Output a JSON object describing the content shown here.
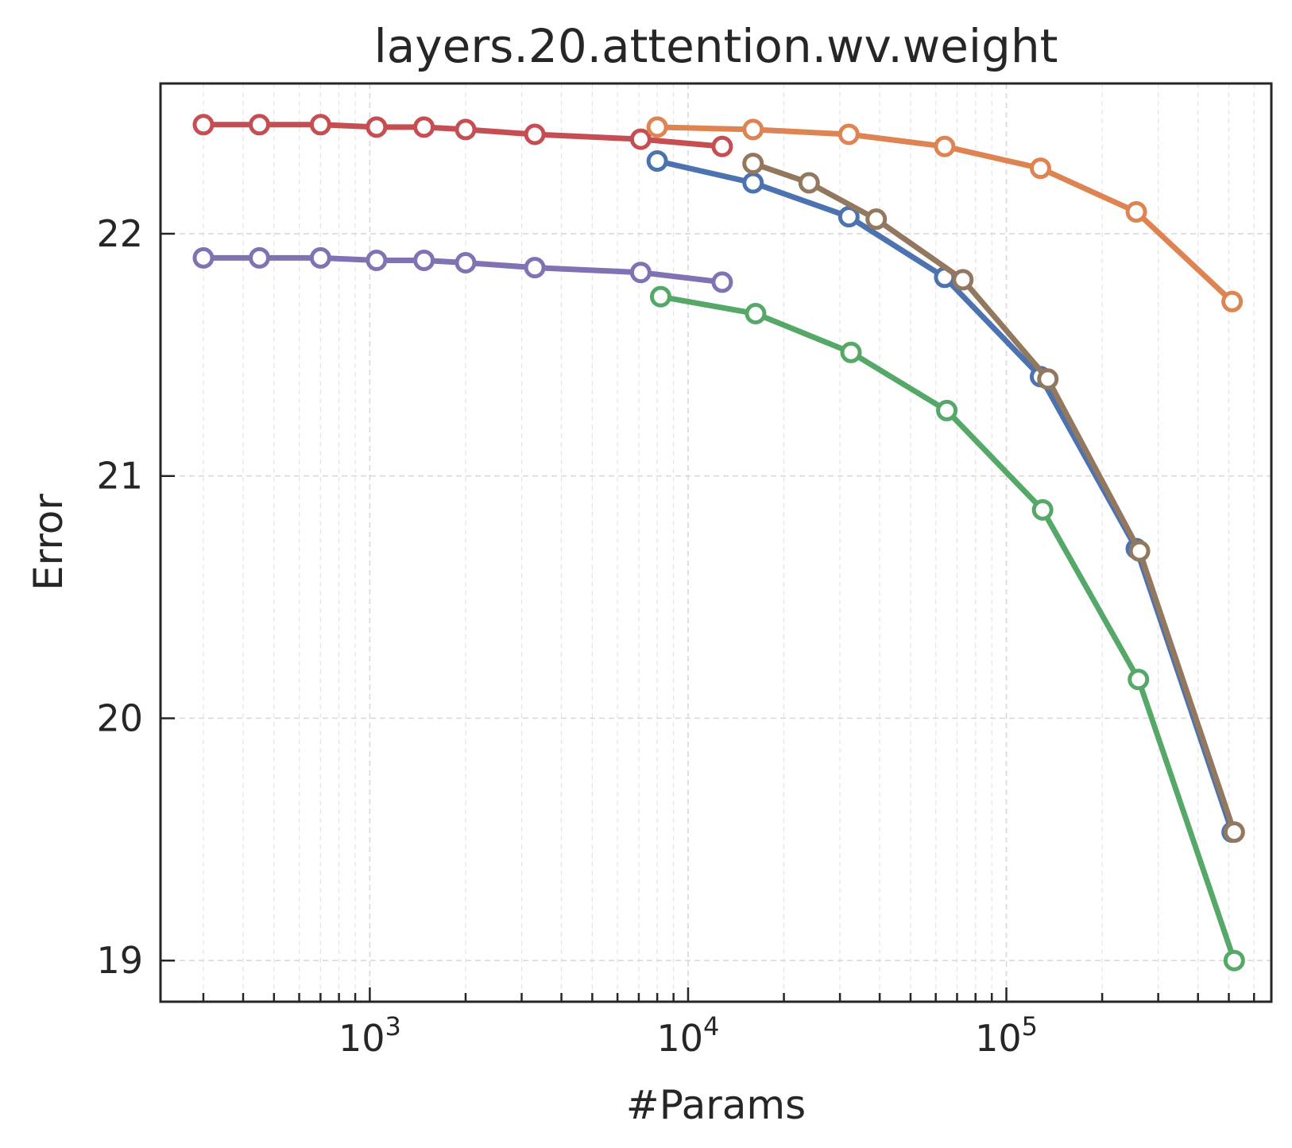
{
  "chart_data": {
    "type": "line",
    "title": "layers.20.attention.wv.weight",
    "xlabel": "#Params",
    "ylabel": "Error",
    "xscale": "log",
    "xlim": [
      220,
      680000
    ],
    "ylim": [
      18.83,
      22.62
    ],
    "yticks": [
      {
        "value": 19,
        "label": "19"
      },
      {
        "value": 20,
        "label": "20"
      },
      {
        "value": 21,
        "label": "21"
      },
      {
        "value": 22,
        "label": "22"
      }
    ],
    "xticks": [
      {
        "value": 1000,
        "base": "10",
        "exp": "3"
      },
      {
        "value": 10000,
        "base": "10",
        "exp": "4"
      },
      {
        "value": 100000,
        "base": "10",
        "exp": "5"
      }
    ],
    "grid": true,
    "series": [
      {
        "name": "red",
        "color": "#c44e52",
        "x": [
          300,
          450,
          700,
          1050,
          1480,
          2000,
          3300,
          7100,
          12800
        ],
        "y": [
          22.45,
          22.45,
          22.45,
          22.44,
          22.44,
          22.43,
          22.41,
          22.39,
          22.36
        ]
      },
      {
        "name": "orange",
        "color": "#dd8452",
        "x": [
          8000,
          16000,
          32000,
          64000,
          128000,
          256000,
          512000
        ],
        "y": [
          22.44,
          22.43,
          22.41,
          22.36,
          22.27,
          22.09,
          21.72
        ]
      },
      {
        "name": "blue",
        "color": "#4c72b0",
        "x": [
          8000,
          16000,
          32000,
          64000,
          128000,
          256000,
          512000
        ],
        "y": [
          22.3,
          22.21,
          22.07,
          21.82,
          21.41,
          20.7,
          19.53
        ]
      },
      {
        "name": "brown",
        "color": "#937860",
        "x": [
          16000,
          24000,
          39000,
          73000,
          135000,
          262000,
          520000
        ],
        "y": [
          22.29,
          22.21,
          22.06,
          21.81,
          21.4,
          20.69,
          19.53
        ]
      },
      {
        "name": "purple",
        "color": "#8172b3",
        "x": [
          300,
          450,
          700,
          1050,
          1480,
          2000,
          3300,
          7100,
          12800
        ],
        "y": [
          21.9,
          21.9,
          21.9,
          21.89,
          21.89,
          21.88,
          21.86,
          21.84,
          21.8
        ]
      },
      {
        "name": "green",
        "color": "#55a868",
        "x": [
          8200,
          16300,
          32500,
          65000,
          130000,
          260000,
          520000
        ],
        "y": [
          21.74,
          21.67,
          21.51,
          21.27,
          20.86,
          20.16,
          19.0
        ]
      }
    ]
  }
}
